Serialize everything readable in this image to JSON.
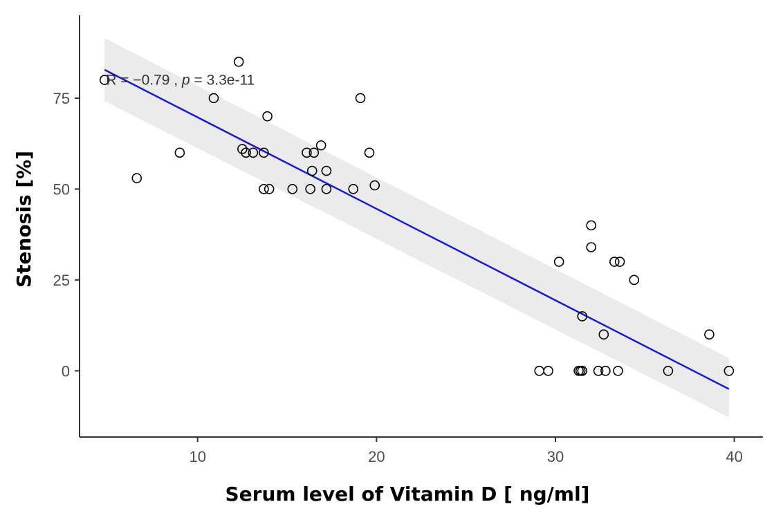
{
  "chart_data": {
    "type": "scatter",
    "xlabel": "Serum level of Vitamin D [ ng/ml]",
    "ylabel": "Stenosis [%]",
    "xlim": [
      3.4,
      41.6
    ],
    "ylim": [
      -18.2,
      97.8
    ],
    "x_ticks": [
      10,
      20,
      30,
      40
    ],
    "y_ticks": [
      0,
      25,
      50,
      75
    ],
    "grid": false,
    "annotation": {
      "r_label": "R = −0.79",
      "sep": " , ",
      "p_label": "p",
      "p_value": " = 3.3e-11",
      "x": 4.8,
      "y": 80
    },
    "regression": {
      "x0": 4.8,
      "y0": 82.8,
      "x1": 39.7,
      "y1": -5,
      "ci_lower_start": 74.2,
      "ci_upper_start": 91.5,
      "ci_lower_end": -12.8,
      "ci_upper_end": 3.5,
      "line_color": "#1a1ad4",
      "band_color": "#ebebeb"
    },
    "points": [
      [
        4.8,
        80
      ],
      [
        6.6,
        53
      ],
      [
        9.0,
        60
      ],
      [
        10.9,
        75
      ],
      [
        12.3,
        85
      ],
      [
        12.5,
        61
      ],
      [
        12.7,
        60
      ],
      [
        13.1,
        60
      ],
      [
        13.7,
        60
      ],
      [
        13.7,
        50
      ],
      [
        13.9,
        70
      ],
      [
        14.0,
        50
      ],
      [
        15.3,
        50
      ],
      [
        16.1,
        60
      ],
      [
        16.3,
        50
      ],
      [
        16.4,
        55
      ],
      [
        16.5,
        60
      ],
      [
        16.9,
        62
      ],
      [
        17.2,
        55
      ],
      [
        17.2,
        50
      ],
      [
        18.7,
        50
      ],
      [
        19.1,
        75
      ],
      [
        19.6,
        60
      ],
      [
        19.9,
        51
      ],
      [
        29.1,
        0
      ],
      [
        29.6,
        0
      ],
      [
        30.2,
        30
      ],
      [
        31.3,
        0
      ],
      [
        31.4,
        0
      ],
      [
        31.5,
        0
      ],
      [
        31.5,
        15
      ],
      [
        32.0,
        40
      ],
      [
        32.0,
        34
      ],
      [
        32.4,
        0
      ],
      [
        32.7,
        10
      ],
      [
        32.8,
        0
      ],
      [
        33.3,
        30
      ],
      [
        33.5,
        0
      ],
      [
        33.6,
        30
      ],
      [
        34.4,
        25
      ],
      [
        36.3,
        0
      ],
      [
        38.6,
        10
      ],
      [
        39.7,
        0
      ]
    ],
    "point_color": "#000000"
  }
}
